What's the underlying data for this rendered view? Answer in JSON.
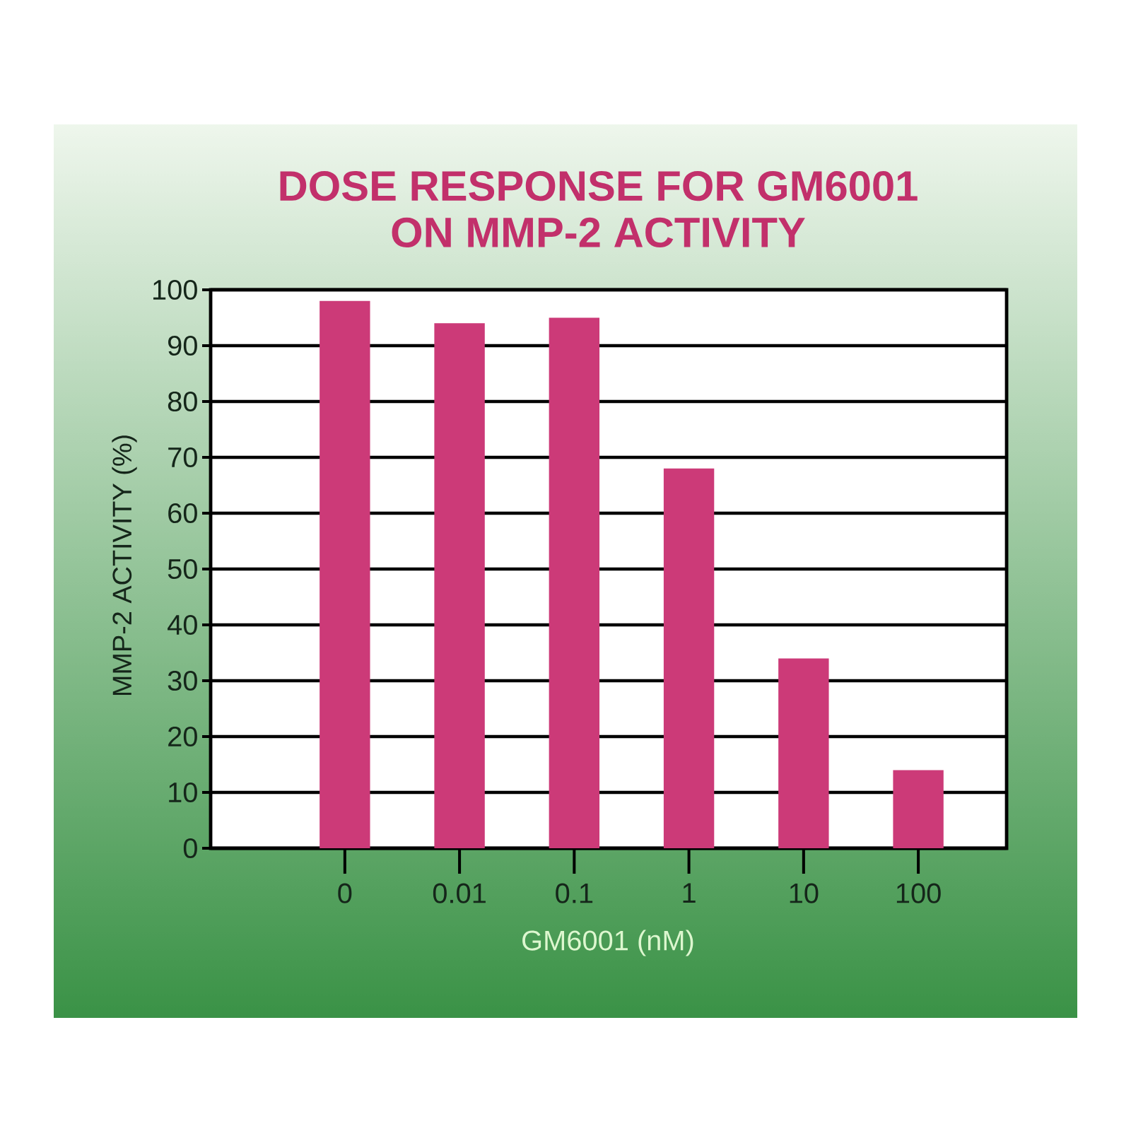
{
  "chart_data": {
    "type": "bar",
    "title": "DOSE RESPONSE FOR GM6001 ON MMP-2 ACTIVITY",
    "xlabel": "GM6001 (nM)",
    "ylabel": "MMP-2 ACTIVITY (%)",
    "categories": [
      "0",
      "0.01",
      "0.1",
      "1",
      "10",
      "100"
    ],
    "values": [
      98,
      94,
      95,
      68,
      34,
      14
    ],
    "color": "#cc3a78",
    "ylim": [
      0,
      100
    ],
    "yticks": [
      0,
      10,
      20,
      30,
      40,
      50,
      60,
      70,
      80,
      90,
      100
    ],
    "grid": "y"
  }
}
